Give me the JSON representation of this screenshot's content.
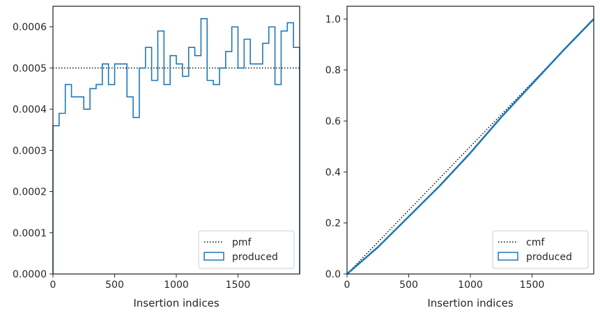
{
  "chart_data": [
    {
      "type": "histogram-step",
      "xlabel": "Insertion indices",
      "ylabel": "",
      "xlim": [
        0,
        2000
      ],
      "ylim": [
        0,
        0.00065
      ],
      "xticks": [
        0,
        500,
        1000,
        1500
      ],
      "xtick_labels": [
        "0",
        "500",
        "1000",
        "1500"
      ],
      "yticks": [
        0,
        0.0001,
        0.0002,
        0.0003,
        0.0004,
        0.0005,
        0.0006
      ],
      "ytick_labels": [
        "0.0000",
        "0.0001",
        "0.0002",
        "0.0003",
        "0.0004",
        "0.0005",
        "0.0006"
      ],
      "bin_width": 50,
      "bin_values": [
        0.00036,
        0.00039,
        0.00046,
        0.00043,
        0.00043,
        0.0004,
        0.00045,
        0.00046,
        0.00051,
        0.00046,
        0.00051,
        0.00051,
        0.00043,
        0.00038,
        0.0005,
        0.00055,
        0.00047,
        0.00059,
        0.00046,
        0.00053,
        0.00051,
        0.00048,
        0.00055,
        0.00053,
        0.00062,
        0.00047,
        0.00046,
        0.0005,
        0.00054,
        0.0006,
        0.0005,
        0.00057,
        0.00051,
        0.00051,
        0.00056,
        0.0006,
        0.00046,
        0.00059,
        0.00061,
        0.00055
      ],
      "reference_line": {
        "name": "pmf",
        "value": 0.0005,
        "style": "dotted",
        "color": "#000000"
      },
      "series_color": "#1f77b4",
      "legend": {
        "position": "lower-right",
        "entries": [
          "pmf",
          "produced"
        ]
      }
    },
    {
      "type": "line",
      "xlabel": "Insertion indices",
      "ylabel": "",
      "xlim": [
        0,
        2000
      ],
      "ylim": [
        0,
        1.05
      ],
      "xticks": [
        0,
        500,
        1000,
        1500
      ],
      "xtick_labels": [
        "0",
        "500",
        "1000",
        "1500"
      ],
      "yticks": [
        0,
        0.2,
        0.4,
        0.6,
        0.8,
        1.0
      ],
      "ytick_labels": [
        "0.0",
        "0.2",
        "0.4",
        "0.6",
        "0.8",
        "1.0"
      ],
      "reference_line": {
        "name": "cmf",
        "points": [
          [
            0,
            0
          ],
          [
            2000,
            1.0
          ]
        ],
        "style": "dotted",
        "color": "#000000"
      },
      "produced": {
        "x": [
          0,
          250,
          500,
          750,
          1000,
          1250,
          1500,
          1750,
          2000
        ],
        "y": [
          0,
          0.105,
          0.225,
          0.345,
          0.475,
          0.615,
          0.745,
          0.875,
          1.0
        ]
      },
      "series_color": "#1f77b4",
      "legend": {
        "position": "lower-right",
        "entries": [
          "cmf",
          "produced"
        ]
      }
    }
  ]
}
